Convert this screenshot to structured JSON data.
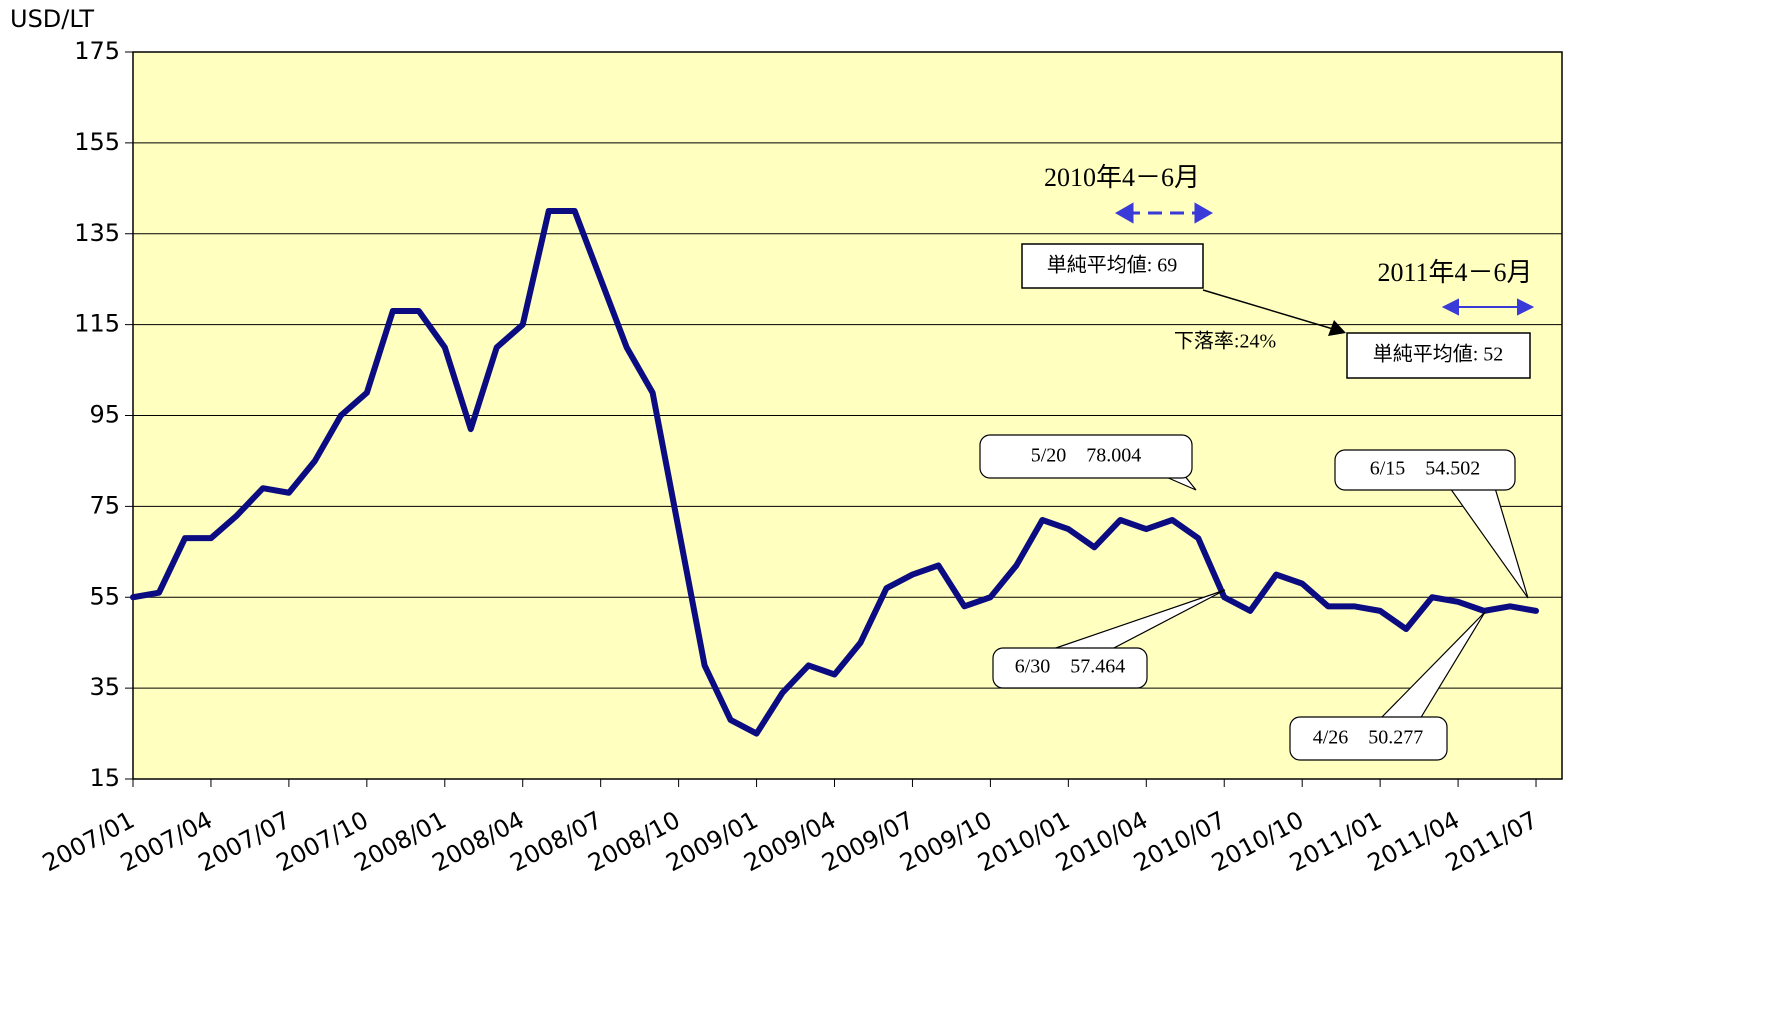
{
  "chart_data": {
    "type": "line",
    "y_axis_label": "USD/LT",
    "x": [
      "2007/01",
      "2007/02",
      "2007/03",
      "2007/04",
      "2007/05",
      "2007/06",
      "2007/07",
      "2007/08",
      "2007/09",
      "2007/10",
      "2007/11",
      "2007/12",
      "2008/01",
      "2008/02",
      "2008/03",
      "2008/04",
      "2008/05",
      "2008/06",
      "2008/07",
      "2008/08",
      "2008/09",
      "2008/10",
      "2008/11",
      "2008/12",
      "2009/01",
      "2009/02",
      "2009/03",
      "2009/04",
      "2009/05",
      "2009/06",
      "2009/07",
      "2009/08",
      "2009/09",
      "2009/10",
      "2009/11",
      "2009/12",
      "2010/01",
      "2010/02",
      "2010/03",
      "2010/04",
      "2010/05",
      "2010/06",
      "2010/07",
      "2010/08",
      "2010/09",
      "2010/10",
      "2010/11",
      "2010/12",
      "2011/01",
      "2011/02",
      "2011/03",
      "2011/04",
      "2011/05",
      "2011/06",
      "2011/07"
    ],
    "series": [
      {
        "name": "USD/LT",
        "color": "#0c0c82",
        "values": [
          55,
          56,
          68,
          68,
          73,
          79,
          78,
          85,
          95,
          100,
          118,
          118,
          110,
          92,
          110,
          115,
          140,
          140,
          125,
          110,
          100,
          70,
          40,
          28,
          25,
          34,
          40,
          38,
          45,
          57,
          60,
          62,
          53,
          55,
          62,
          72,
          70,
          66,
          72,
          70,
          72,
          68,
          55,
          52,
          60,
          58,
          53,
          53,
          52,
          48,
          55,
          54,
          52,
          53,
          52
        ]
      }
    ],
    "xlim": [
      "2007/01",
      "2011/08"
    ],
    "xticks": [
      "2007/01",
      "2007/04",
      "2007/07",
      "2007/10",
      "2008/01",
      "2008/04",
      "2008/07",
      "2008/10",
      "2009/01",
      "2009/04",
      "2009/07",
      "2009/10",
      "2010/01",
      "2010/04",
      "2010/07",
      "2010/10",
      "2011/01",
      "2011/04",
      "2011/07"
    ],
    "ylim": [
      15,
      175
    ],
    "yticks": [
      15,
      35,
      55,
      75,
      95,
      115,
      135,
      155,
      175
    ],
    "grid": true,
    "annotations": [
      "2010年4－6月",
      "単純平均値: 69",
      "2011年4－6月",
      "単純平均値: 52",
      "下落率:24%",
      "5/20　78.004",
      "6/30　57.464",
      "6/15　54.502",
      "4/26　50.277"
    ]
  }
}
